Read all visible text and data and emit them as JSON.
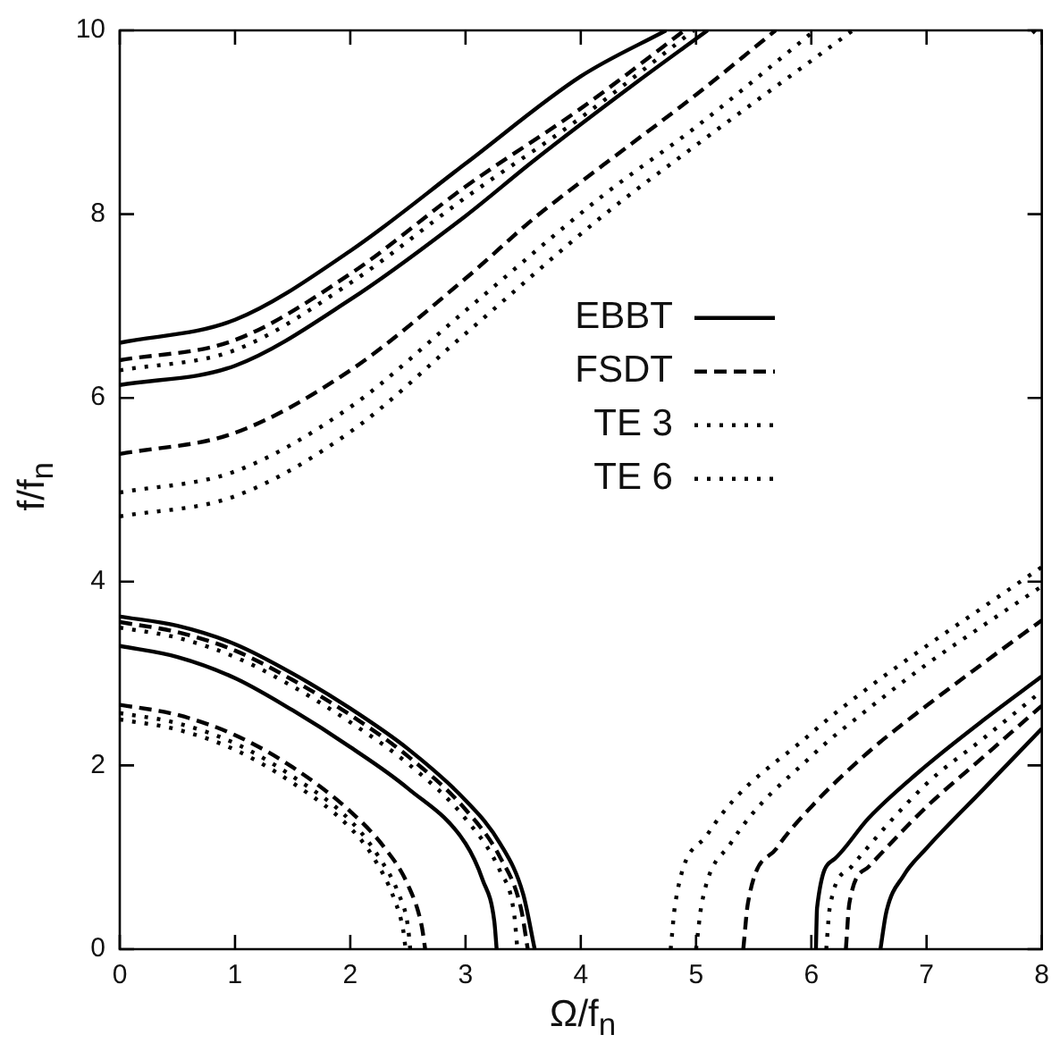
{
  "chart_data": {
    "type": "line",
    "xlabel": "Ω/f$_{n}$",
    "ylabel": "f/f$_{n}$",
    "xlim": [
      0,
      8
    ],
    "xticks": [
      0,
      1,
      2,
      3,
      4,
      5,
      6,
      7,
      8
    ],
    "ylim": [
      0,
      10
    ],
    "yticks": [
      0,
      2,
      4,
      6,
      8,
      10
    ],
    "grid": false,
    "legend": "right",
    "marker": "none",
    "series": [
      {
        "name": "EBBT",
        "color": "#000000",
        "line_style": "solid",
        "x": [
          0,
          1,
          2,
          3,
          3.59,
          4.5,
          5.1
        ],
        "values": [
          6.14,
          6.35,
          7.07,
          7.98,
          8.58,
          9.45,
          10
        ]
      },
      {
        "color": "#000000",
        "line_style": "solid",
        "x": [
          0,
          0.5,
          1,
          1.5,
          2,
          2.5,
          3,
          3.15,
          3.25,
          3.27
        ],
        "values": [
          3.3,
          3.18,
          2.95,
          2.6,
          2.2,
          1.75,
          1.15,
          0.75,
          0.3,
          0
        ]
      },
      {
        "color": "#000000",
        "line_style": "solid",
        "x": [
          6.04,
          6.05,
          6.2,
          6.5,
          7,
          7.5,
          8
        ],
        "values": [
          0,
          0.45,
          0.98,
          1.43,
          2,
          2.5,
          2.97
        ]
      },
      {
        "name": "FSDT",
        "color": "#000000",
        "line_style": "dashed",
        "x": [
          0,
          1,
          2,
          3,
          3.59,
          4.19,
          5,
          5.69
        ],
        "values": [
          5.39,
          5.62,
          6.3,
          7.3,
          7.95,
          8.53,
          9.3,
          10
        ]
      },
      {
        "color": "#000000",
        "line_style": "dashed",
        "x": [
          0,
          0.5,
          1,
          1.5,
          2,
          2.3,
          2.5,
          2.62,
          2.65
        ],
        "values": [
          2.66,
          2.55,
          2.33,
          1.98,
          1.5,
          1.1,
          0.7,
          0.25,
          0
        ]
      },
      {
        "color": "#000000",
        "line_style": "dashed",
        "x": [
          5.41,
          5.45,
          5.7,
          6,
          6.5,
          7,
          7.5,
          8
        ],
        "values": [
          0,
          0.5,
          1.1,
          1.55,
          2.15,
          2.65,
          3.12,
          3.58
        ]
      },
      {
        "name": "TE 3",
        "color": "#000000",
        "line_style": "dotted",
        "x": [
          0,
          1,
          2,
          3,
          4.19,
          5,
          6.03
        ],
        "values": [
          4.97,
          5.2,
          5.9,
          6.95,
          8.2,
          8.95,
          10
        ]
      },
      {
        "color": "#000000",
        "line_style": "dotted",
        "x": [
          0,
          0.5,
          1,
          1.5,
          2,
          2.25,
          2.42,
          2.5,
          2.52
        ],
        "values": [
          2.57,
          2.46,
          2.24,
          1.88,
          1.4,
          1,
          0.6,
          0.25,
          0
        ]
      },
      {
        "color": "#000000",
        "line_style": "dotted",
        "x": [
          5,
          5.05,
          5.3,
          6,
          6.5,
          7,
          7.5,
          8
        ],
        "values": [
          0,
          0.5,
          1.15,
          2.1,
          2.62,
          3.1,
          3.53,
          3.95
        ]
      },
      {
        "name": "TE 6",
        "color": "#000000",
        "line_style": "dotted",
        "x": [
          0,
          1,
          2,
          3,
          4.19,
          5,
          6.36
        ],
        "values": [
          4.71,
          4.93,
          5.63,
          6.7,
          7.98,
          8.75,
          10
        ]
      },
      {
        "color": "#000000",
        "line_style": "dotted",
        "x": [
          0,
          0.5,
          1,
          1.5,
          2,
          2.2,
          2.38,
          2.46,
          2.48
        ],
        "values": [
          2.5,
          2.39,
          2.17,
          1.81,
          1.32,
          1,
          0.55,
          0.2,
          0
        ]
      },
      {
        "color": "#000000",
        "line_style": "dotted",
        "x": [
          4.78,
          4.82,
          5.1,
          6,
          6.5,
          7,
          7.5,
          8
        ],
        "values": [
          0,
          0.5,
          1.25,
          2.35,
          2.85,
          3.3,
          3.73,
          4.16
        ]
      },
      {
        "color": "#000000",
        "line_style": "dotted",
        "x": [
          7.92,
          8
        ],
        "values": [
          10,
          9.9
        ]
      },
      {
        "color": "#000000",
        "line_style": "solid",
        "x": [
          0,
          1,
          2,
          3,
          4,
          4.74
        ],
        "values": [
          6.6,
          6.85,
          7.6,
          8.55,
          9.5,
          10
        ]
      },
      {
        "color": "#000000",
        "line_style": "solid",
        "x": [
          0,
          0.5,
          1,
          1.5,
          2,
          2.5,
          3,
          3.3,
          3.5,
          3.6
        ],
        "values": [
          3.62,
          3.52,
          3.32,
          3,
          2.62,
          2.18,
          1.62,
          1.15,
          0.6,
          0
        ]
      },
      {
        "color": "#000000",
        "line_style": "solid",
        "x": [
          6.6,
          6.65,
          6.8,
          7,
          7.5,
          8
        ],
        "values": [
          0,
          0.4,
          0.8,
          1.1,
          1.75,
          2.4
        ]
      },
      {
        "color": "#000000",
        "line_style": "dashed",
        "x": [
          0,
          1,
          2,
          3,
          4,
          4.9
        ],
        "values": [
          6.41,
          6.63,
          7.35,
          8.3,
          9.15,
          10
        ]
      },
      {
        "color": "#000000",
        "line_style": "dashed",
        "x": [
          0,
          0.5,
          1,
          1.5,
          2,
          2.5,
          3,
          3.3,
          3.48,
          3.54
        ],
        "values": [
          3.56,
          3.45,
          3.25,
          2.93,
          2.55,
          2.1,
          1.52,
          1,
          0.45,
          0
        ]
      },
      {
        "color": "#000000",
        "line_style": "dashed",
        "x": [
          6.3,
          6.33,
          6.5,
          7,
          7.5,
          8
        ],
        "values": [
          0,
          0.5,
          0.9,
          1.55,
          2.1,
          2.65
        ]
      },
      {
        "color": "#000000",
        "line_style": "dotted",
        "x": [
          0,
          1,
          2,
          3,
          4,
          4.98
        ],
        "values": [
          6.3,
          6.52,
          7.25,
          8.18,
          9.05,
          10
        ]
      },
      {
        "color": "#000000",
        "line_style": "dotted",
        "x": [
          0,
          0.5,
          1,
          1.5,
          2,
          2.5,
          3,
          3.3,
          3.42,
          3.45
        ],
        "values": [
          3.5,
          3.39,
          3.18,
          2.86,
          2.47,
          2.02,
          1.42,
          0.85,
          0.4,
          0
        ]
      },
      {
        "color": "#000000",
        "line_style": "dotted",
        "x": [
          6.13,
          6.16,
          6.35,
          7,
          7.5,
          8
        ],
        "values": [
          0,
          0.45,
          0.9,
          1.8,
          2.3,
          2.81
        ]
      }
    ]
  }
}
